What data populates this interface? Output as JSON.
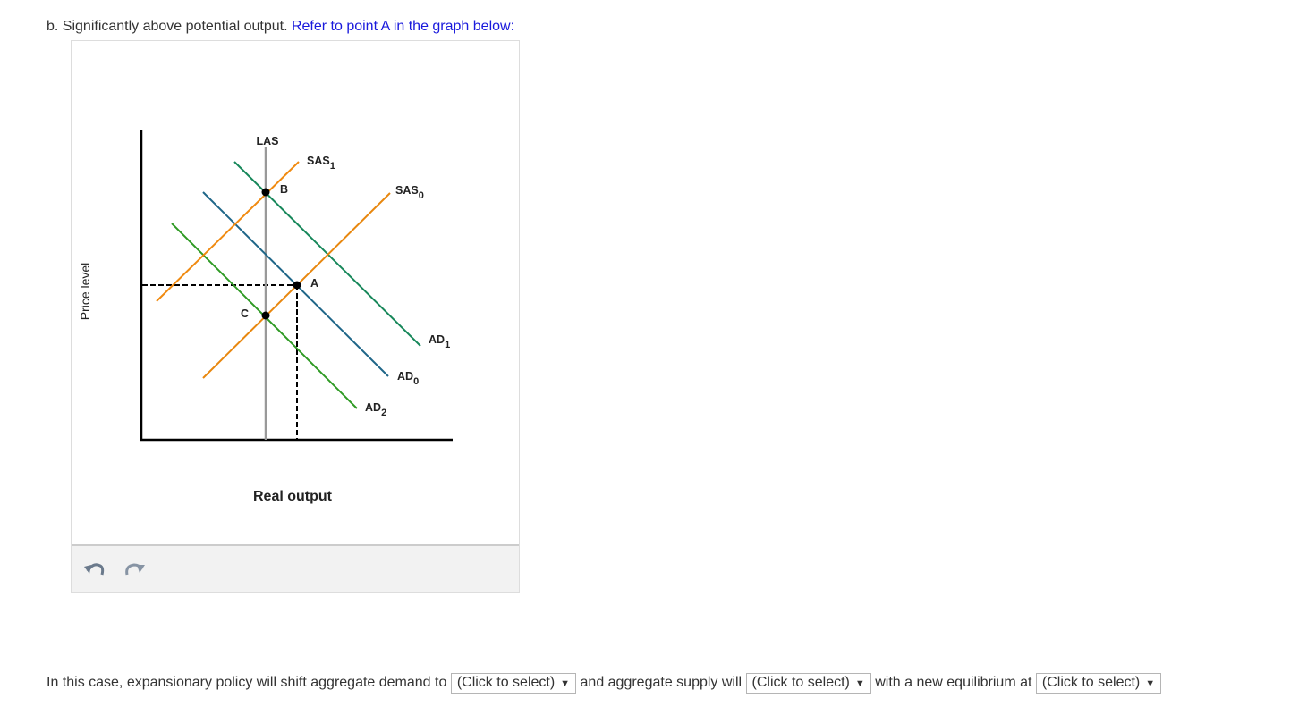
{
  "question": {
    "text": "b. Significantly above potential output.",
    "link": "Refer to point A in the graph below:"
  },
  "graph": {
    "y_axis_label": "Price level",
    "x_axis_label": "Real output",
    "curves": {
      "las": {
        "text": "LAS"
      },
      "sas1": {
        "text": "SAS",
        "sub": "1"
      },
      "sas0": {
        "text": "SAS",
        "sub": "0"
      },
      "ad1": {
        "text": "AD",
        "sub": "1"
      },
      "ad0": {
        "text": "AD",
        "sub": "0"
      },
      "ad2": {
        "text": "AD",
        "sub": "2"
      }
    },
    "points": {
      "a": "A",
      "b": "B",
      "c": "C"
    }
  },
  "sentence": {
    "parts": [
      "In this case, expansionary policy will shift aggregate demand to",
      "and aggregate supply will",
      "with a new equilibrium at"
    ],
    "dropdowns": [
      "(Click to select)",
      "(Click to select)",
      "(Click to select)"
    ]
  }
}
